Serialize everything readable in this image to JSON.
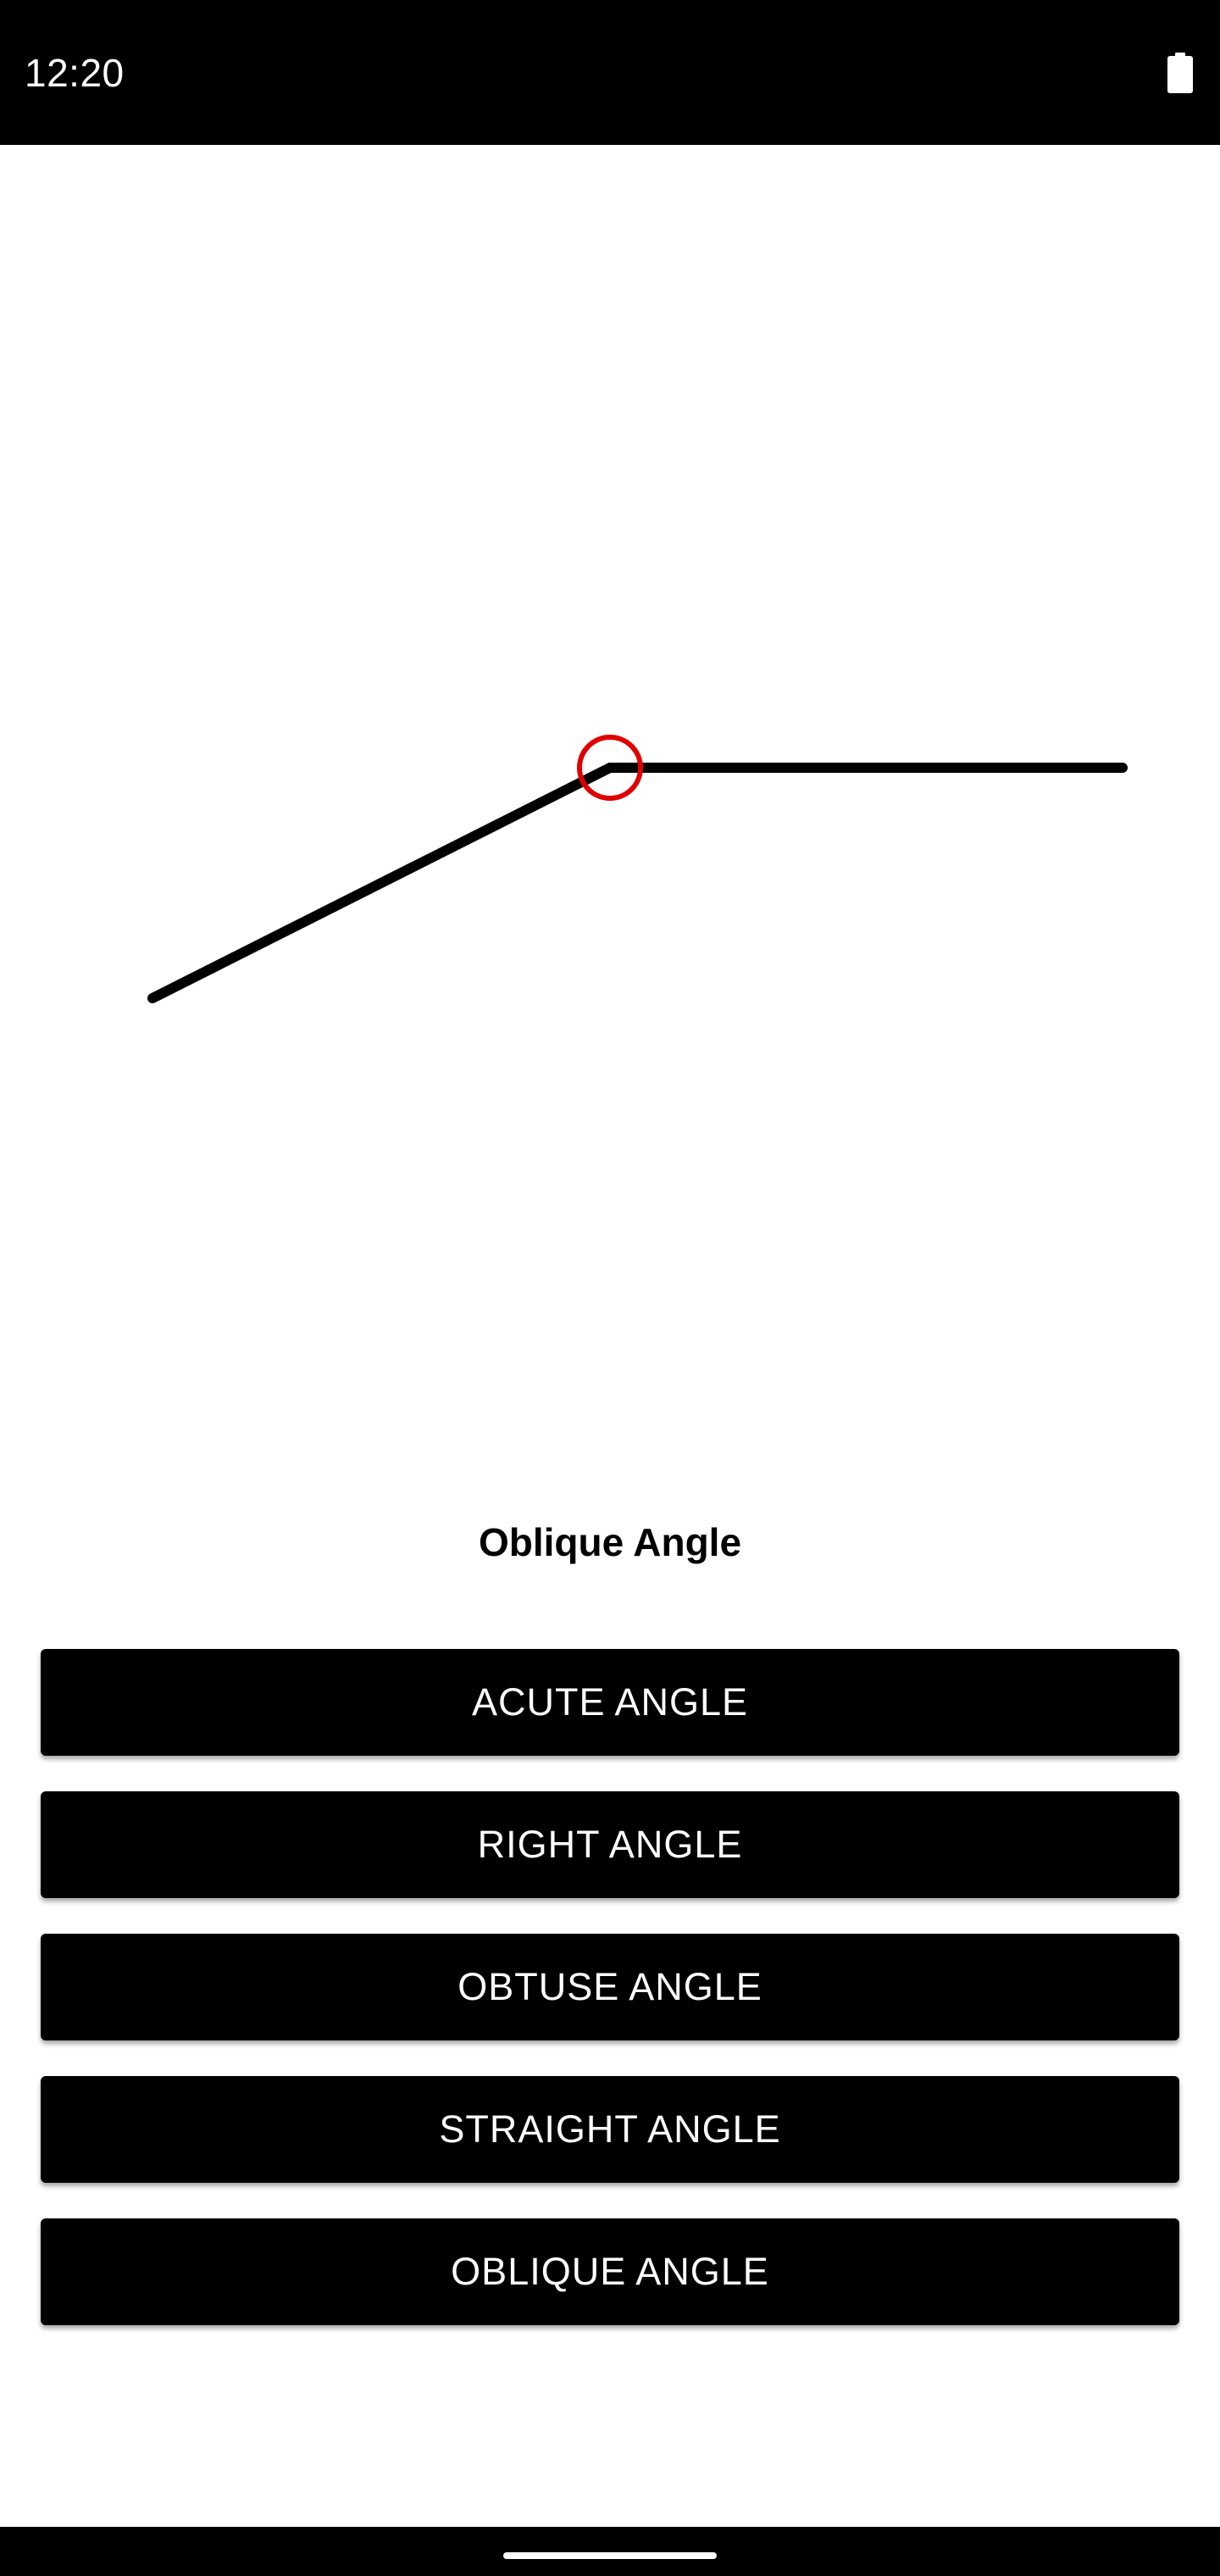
{
  "status_bar": {
    "time": "12:20",
    "battery_icon": "battery-full-icon"
  },
  "angle_display": {
    "label": "Oblique Angle",
    "vertex_marker_color": "#e00000",
    "line_color": "#000000"
  },
  "buttons": [
    {
      "label": "ACUTE ANGLE"
    },
    {
      "label": "RIGHT ANGLE"
    },
    {
      "label": "OBTUSE ANGLE"
    },
    {
      "label": "STRAIGHT ANGLE"
    },
    {
      "label": "OBLIQUE ANGLE"
    }
  ],
  "colors": {
    "button_background": "#000000",
    "button_text": "#ffffff",
    "page_background": "#ffffff"
  }
}
